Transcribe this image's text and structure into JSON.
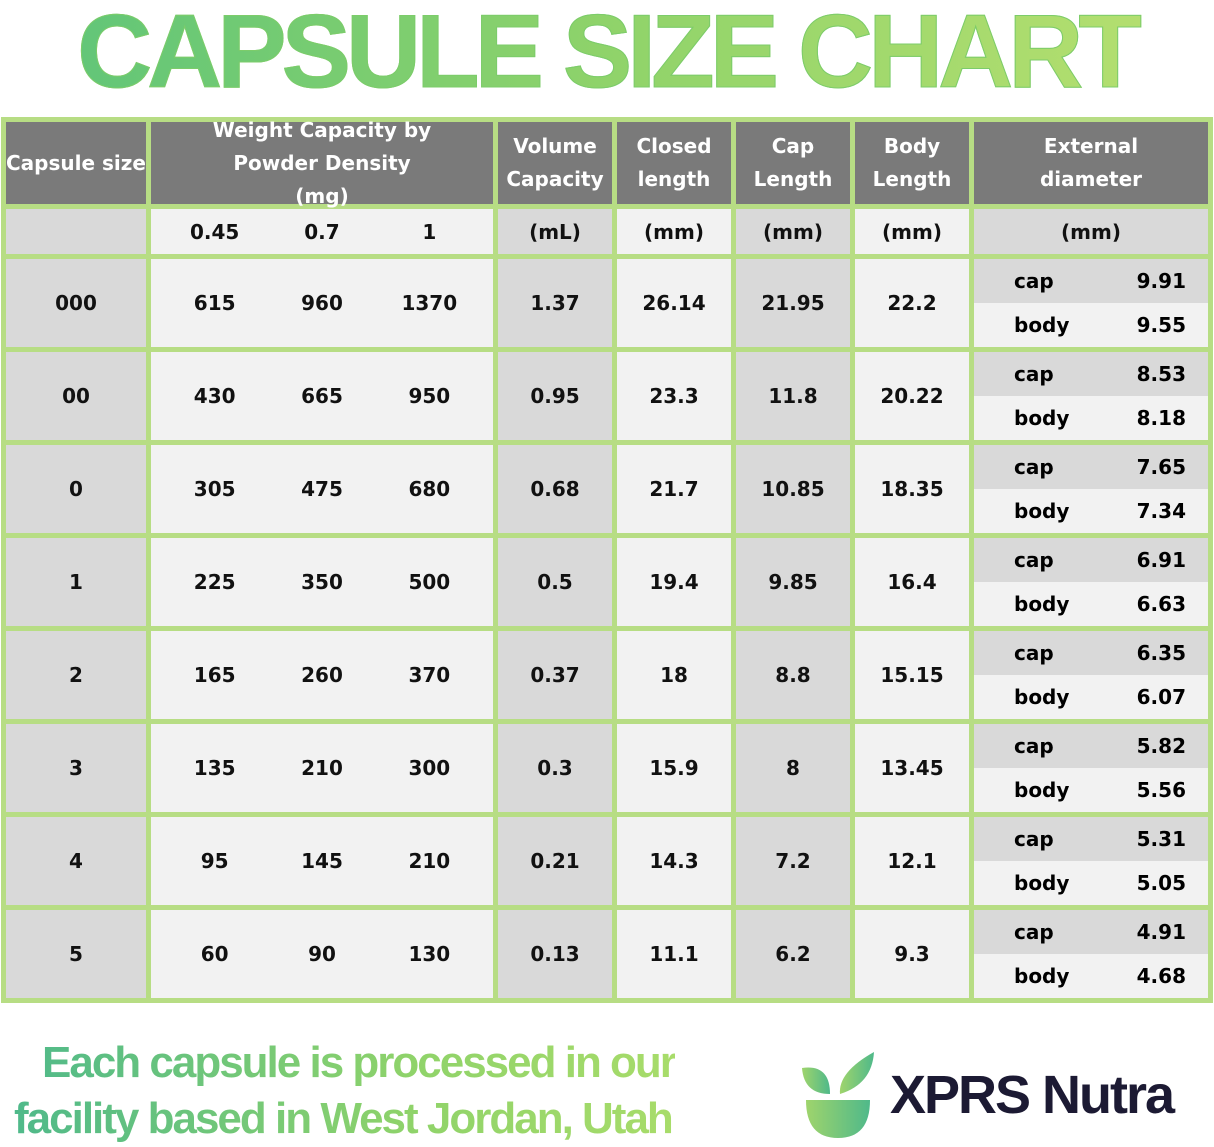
{
  "title": "CAPSULE SIZE CHART",
  "headers": {
    "size": "Capsule size",
    "weight": "Weight Capacity by Powder Density (mg)",
    "volume": "Volume Capacity",
    "closed": "Closed length",
    "cap": "Cap Length",
    "body": "Body Length",
    "ext": "External diameter"
  },
  "units": {
    "densities": [
      "0.45",
      "0.7",
      "1"
    ],
    "volume": "(mL)",
    "closed": "(mm)",
    "cap": "(mm)",
    "body": "(mm)",
    "ext": "(mm)"
  },
  "ext_labels": {
    "cap": "cap",
    "body": "body"
  },
  "rows": [
    {
      "size": "000",
      "w": [
        "615",
        "960",
        "1370"
      ],
      "vol": "1.37",
      "closed": "26.14",
      "cap": "21.95",
      "body": "22.2",
      "ext_cap": "9.91",
      "ext_body": "9.55"
    },
    {
      "size": "00",
      "w": [
        "430",
        "665",
        "950"
      ],
      "vol": "0.95",
      "closed": "23.3",
      "cap": "11.8",
      "body": "20.22",
      "ext_cap": "8.53",
      "ext_body": "8.18"
    },
    {
      "size": "0",
      "w": [
        "305",
        "475",
        "680"
      ],
      "vol": "0.68",
      "closed": "21.7",
      "cap": "10.85",
      "body": "18.35",
      "ext_cap": "7.65",
      "ext_body": "7.34"
    },
    {
      "size": "1",
      "w": [
        "225",
        "350",
        "500"
      ],
      "vol": "0.5",
      "closed": "19.4",
      "cap": "9.85",
      "body": "16.4",
      "ext_cap": "6.91",
      "ext_body": "6.63"
    },
    {
      "size": "2",
      "w": [
        "165",
        "260",
        "370"
      ],
      "vol": "0.37",
      "closed": "18",
      "cap": "8.8",
      "body": "15.15",
      "ext_cap": "6.35",
      "ext_body": "6.07"
    },
    {
      "size": "3",
      "w": [
        "135",
        "210",
        "300"
      ],
      "vol": "0.3",
      "closed": "15.9",
      "cap": "8",
      "body": "13.45",
      "ext_cap": "5.82",
      "ext_body": "5.56"
    },
    {
      "size": "4",
      "w": [
        "95",
        "145",
        "210"
      ],
      "vol": "0.21",
      "closed": "14.3",
      "cap": "7.2",
      "body": "12.1",
      "ext_cap": "5.31",
      "ext_body": "5.05"
    },
    {
      "size": "5",
      "w": [
        "60",
        "90",
        "130"
      ],
      "vol": "0.13",
      "closed": "11.1",
      "cap": "6.2",
      "body": "9.3",
      "ext_cap": "4.91",
      "ext_body": "4.68"
    }
  ],
  "footer": {
    "line1": "Each capsule is processed in our",
    "line2": "facility based in West Jordan, Utah"
  },
  "brand": "XPRS Nutra",
  "logo_icon": "leaf-bowl-icon",
  "colors": {
    "border": "#b7dd84",
    "header": "#7a7a7a",
    "cell_dark": "#d9d9d9",
    "cell_light": "#f2f2f2",
    "brand": "#1c1a33"
  }
}
